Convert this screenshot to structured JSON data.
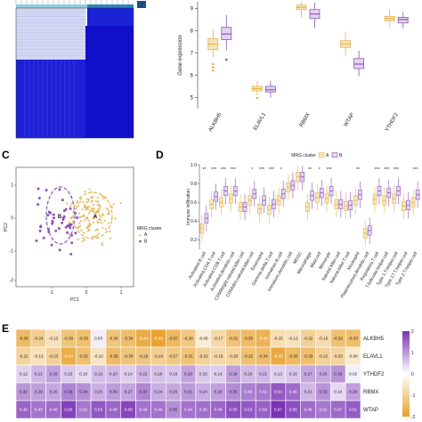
{
  "panels": {
    "c_letter": "C",
    "d_letter": "D",
    "e_letter": "E"
  },
  "colors": {
    "cluster_a": "#e3b34c",
    "cluster_b": "#8c55b6",
    "heat_blue": "#1f1fd6",
    "heat_high": "#7a33b5",
    "heat_low": "#e8a22e"
  },
  "legend_a_tag": "2",
  "chart_data": [
    {
      "type": "heatmap",
      "panel": "A (consensus matrix, cropped)",
      "description_values": "two clusters, large lower-right block"
    },
    {
      "type": "box",
      "panel": "B",
      "ylabel": "Gene expression",
      "ylim": [
        4.5,
        9.3
      ],
      "yticks": [
        5,
        6,
        7,
        8,
        9
      ],
      "categories": [
        "ALKBH5",
        "ELAVL1",
        "RBMX",
        "WTAP",
        "YTHDF2"
      ],
      "series": [
        {
          "name": "A",
          "boxes": [
            {
              "min": 6.8,
              "q1": 7.15,
              "median": 7.4,
              "q3": 7.65,
              "max": 8.05
            },
            {
              "min": 5.1,
              "q1": 5.3,
              "median": 5.4,
              "q3": 5.5,
              "max": 5.75
            },
            {
              "min": 8.6,
              "q1": 8.95,
              "median": 9.05,
              "q3": 9.15,
              "max": 9.3
            },
            {
              "min": 6.9,
              "q1": 7.25,
              "median": 7.4,
              "q3": 7.55,
              "max": 7.95
            },
            {
              "min": 8.15,
              "q1": 8.45,
              "median": 8.55,
              "q3": 8.65,
              "max": 8.95
            }
          ]
        },
        {
          "name": "B",
          "boxes": [
            {
              "min": 7.1,
              "q1": 7.6,
              "median": 7.85,
              "q3": 8.15,
              "max": 8.7
            },
            {
              "min": 5.0,
              "q1": 5.25,
              "median": 5.35,
              "q3": 5.5,
              "max": 5.75
            },
            {
              "min": 8.1,
              "q1": 8.55,
              "median": 8.75,
              "q3": 8.95,
              "max": 9.25
            },
            {
              "min": 5.95,
              "q1": 6.3,
              "median": 6.5,
              "q3": 6.75,
              "max": 7.1
            },
            {
              "min": 8.1,
              "q1": 8.35,
              "median": 8.5,
              "q3": 8.6,
              "max": 8.85
            }
          ]
        }
      ]
    },
    {
      "type": "scatter",
      "panel": "C",
      "xlabel": "PC1",
      "ylabel": "PC2",
      "legend_title": "MRG cluster",
      "legend": [
        "A",
        "B"
      ],
      "legend_position": "right",
      "xticks": [
        "-1",
        "0",
        "1"
      ],
      "yticks": [
        "1",
        "0",
        "-1",
        "-2"
      ],
      "cluster_labels": [
        "B",
        "A"
      ]
    },
    {
      "type": "box",
      "panel": "D",
      "ylabel": "Immune infiltration",
      "legend_title": "MRG cluster",
      "legend": [
        "A",
        "B"
      ],
      "legend_position": "top",
      "yticks": [
        "1.0",
        "0.8",
        "0.6",
        "0.4",
        "0.2"
      ],
      "ylim": [
        0.1,
        1.0
      ],
      "categories": [
        "Activated.B.cell",
        "Activated.CD4.T.cell",
        "Activated.CD8.T.cell",
        "Activated.dendritic.cell",
        "CD56bright.natural.killer.cell",
        "CD56dim.natural.killer.cell",
        "Eosinophil",
        "Gamma.delta.T.cell",
        "Immature.B.cell",
        "Immature.dendritic.cell",
        "MDSC",
        "Macrophage",
        "Mast.cell",
        "Monocyte",
        "Natural.killer.cell",
        "Natural.killer.T.cell",
        "Neutrophil",
        "Plasmacytoid.dendritic.cell",
        "Regulatory.T.cell",
        "T.follicular.helper.cell",
        "Type.1.T.helper.cell",
        "Type.17.T.helper.cell",
        "Type.2.T.helper.cell"
      ],
      "significance": [
        "**",
        "***",
        "***",
        "***",
        "",
        "*",
        "***",
        "***",
        "*",
        "",
        "",
        "**",
        "*",
        "***",
        "",
        "",
        "**",
        "",
        "***",
        "***",
        "***",
        "",
        "***"
      ],
      "medians_a": [
        0.32,
        0.58,
        0.6,
        0.64,
        0.55,
        0.62,
        0.53,
        0.52,
        0.62,
        0.76,
        0.87,
        0.55,
        0.65,
        0.64,
        0.58,
        0.56,
        0.62,
        0.27,
        0.63,
        0.62,
        0.64,
        0.56,
        0.6
      ],
      "medians_b": [
        0.43,
        0.66,
        0.72,
        0.72,
        0.55,
        0.69,
        0.62,
        0.58,
        0.69,
        0.78,
        0.87,
        0.67,
        0.7,
        0.72,
        0.58,
        0.57,
        0.68,
        0.3,
        0.72,
        0.7,
        0.72,
        0.57,
        0.68
      ]
    },
    {
      "type": "heatmap",
      "panel": "E",
      "rows": [
        "ALKBH5",
        "ELAVL1",
        "YTHDF2",
        "RBMX",
        "WTAP"
      ],
      "colorbar_ticks": [
        "2",
        "1",
        "0",
        "-1",
        "-2"
      ],
      "values": [
        [
          -0.36,
          -0.24,
          -0.13,
          -0.3,
          -0.33,
          0.03,
          -0.3,
          -0.34,
          -0.44,
          -0.49,
          -0.37,
          -0.28,
          -0.06,
          -0.17,
          -0.31,
          -0.35,
          -0.4,
          -0.15,
          -0.12,
          -0.22,
          -0.16,
          -0.32,
          -0.33
        ],
        [
          -0.21,
          -0.13,
          -0.23,
          -0.43,
          -0.32,
          -0.1,
          -0.35,
          -0.3,
          -0.29,
          -0.24,
          -0.27,
          -0.31,
          -0.22,
          -0.18,
          -0.2,
          -0.32,
          -0.34,
          -0.45,
          -0.36,
          -0.33,
          -0.22,
          -0.2,
          -0.08
        ],
        [
          0.12,
          0.21,
          0.28,
          0.15,
          0.1,
          0.19,
          0.2,
          0.14,
          0.22,
          0.18,
          0.16,
          0.28,
          0.15,
          0.14,
          0.29,
          0.2,
          0.21,
          0.13,
          0.16,
          0.27,
          0.26,
          0.33,
          0.02
        ],
        [
          0.32,
          0.29,
          0.26,
          0.38,
          0.34,
          0.23,
          0.3,
          0.27,
          0.37,
          0.24,
          0.26,
          0.31,
          0.24,
          0.29,
          0.35,
          0.4,
          0.42,
          0.53,
          0.46,
          0.21,
          0.33,
          0.1,
          0.29
        ],
        [
          0.49,
          0.43,
          0.46,
          0.6,
          0.42,
          0.53,
          0.48,
          0.59,
          0.44,
          0.44,
          0.35,
          0.44,
          0.45,
          0.48,
          0.55,
          0.53,
          0.5,
          0.67,
          0.56,
          0.46,
          0.42,
          0.47,
          0.51
        ]
      ]
    }
  ]
}
